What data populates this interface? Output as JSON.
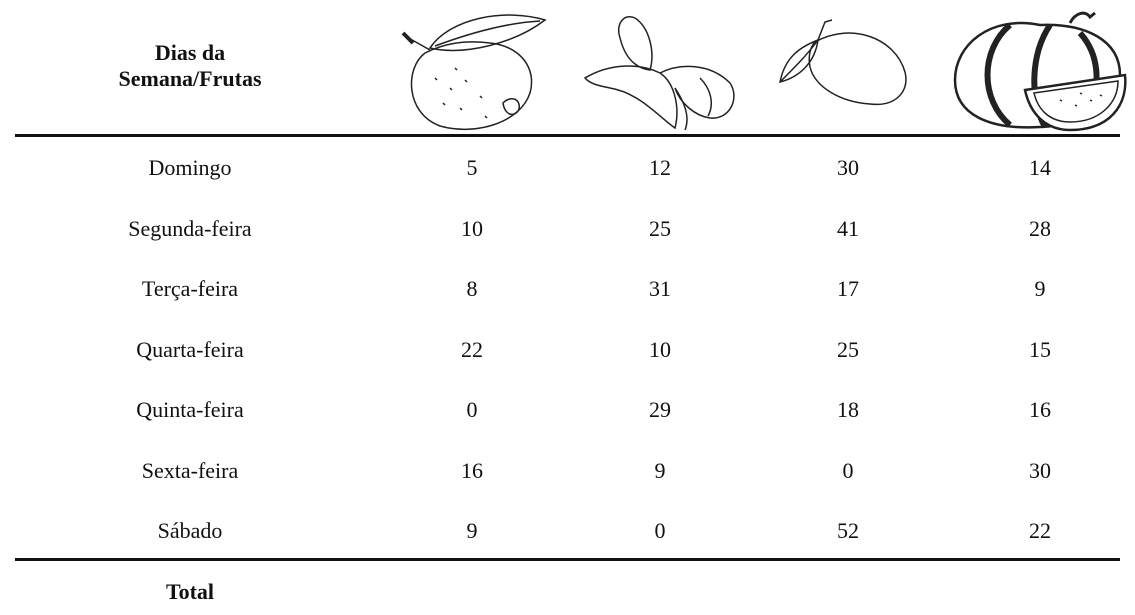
{
  "table": {
    "header": "Dias da Semana/Frutas",
    "rows": [
      [
        "Domingo",
        5,
        12,
        30,
        14
      ],
      [
        "Segunda-feira",
        10,
        25,
        41,
        28
      ],
      [
        "Terça-feira",
        8,
        31,
        17,
        9
      ],
      [
        "Quarta-feira",
        22,
        10,
        25,
        15
      ],
      [
        "Quinta-feira",
        0,
        29,
        18,
        16
      ],
      [
        "Sexta-feira",
        16,
        9,
        0,
        30
      ],
      [
        "Sábado",
        9,
        0,
        52,
        22
      ]
    ],
    "total_label": "Total"
  }
}
